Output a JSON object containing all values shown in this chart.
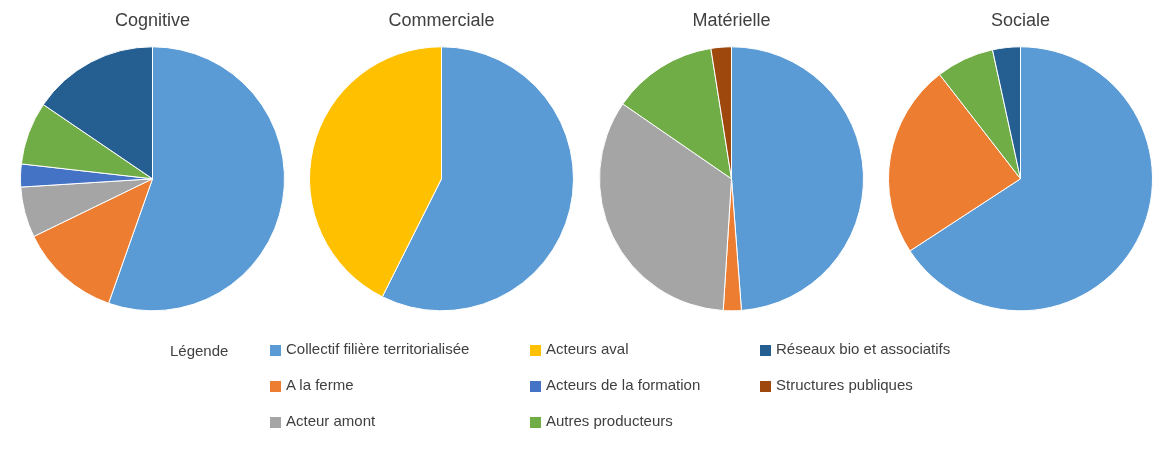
{
  "chart_data": [
    {
      "type": "pie",
      "title": "Cognitive",
      "legend": "bottom",
      "legend_title": "Légende",
      "categories": [
        "Collectif filière territorialisée",
        "A la ferme",
        "Acteur amont",
        "Acteurs aval",
        "Acteurs de la formation",
        "Autres producteurs",
        "Réseaux bio et associatifs",
        "Structures publiques"
      ],
      "values": [
        55.4,
        12.4,
        6.2,
        0,
        2.8,
        7.7,
        15.5,
        0
      ],
      "colors": [
        "#5b9bd5",
        "#ed7d31",
        "#a5a5a5",
        "#ffc000",
        "#4472c4",
        "#70ad47",
        "#255e91",
        "#9e480e"
      ]
    },
    {
      "type": "pie",
      "title": "Commerciale",
      "categories": [
        null,
        null
      ],
      "values": [
        57.4,
        42.6
      ],
      "colors": [
        "#5b9bd5",
        "#ffc000"
      ]
    },
    {
      "type": "pie",
      "title": "Matérielle",
      "categories": [
        null,
        null,
        null,
        null,
        null
      ],
      "values": [
        48.8,
        2.2,
        33.6,
        12.9,
        2.5
      ],
      "colors": [
        "#5b9bd5",
        "#ed7d31",
        "#a5a5a5",
        "#70ad47",
        "#9e480e"
      ]
    },
    {
      "type": "pie",
      "title": "Sociale",
      "categories": [
        null,
        null,
        null,
        null
      ],
      "values": [
        65.8,
        23.7,
        7.1,
        3.4
      ],
      "colors": [
        "#5b9bd5",
        "#ed7d31",
        "#70ad47",
        "#255e91"
      ]
    }
  ]
}
